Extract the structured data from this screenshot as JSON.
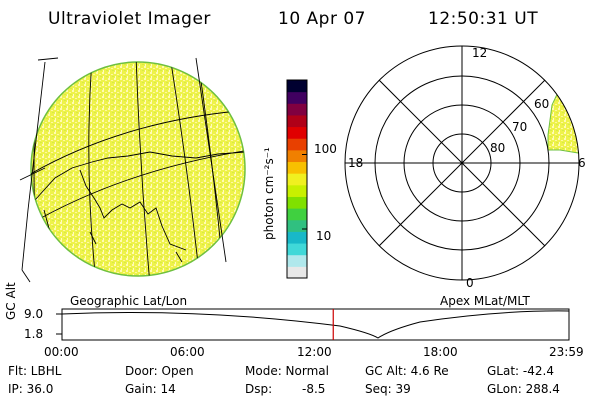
{
  "header": {
    "instrument": "Ultraviolet Imager",
    "date": "10 Apr 07",
    "time": "12:50:31 UT"
  },
  "colorbar": {
    "unit_label": "photon cm⁻²s⁻¹",
    "ticks": [
      {
        "label": "100",
        "value": 100
      },
      {
        "label": "10",
        "value": 10
      }
    ],
    "colors": [
      "#e8e8e8",
      "#b0e8ec",
      "#40d8d8",
      "#18b8c8",
      "#30c080",
      "#40d040",
      "#80e000",
      "#c8f000",
      "#f0f020",
      "#f8c000",
      "#f08000",
      "#e84000",
      "#e00000",
      "#b00018",
      "#800040",
      "#400060",
      "#000030"
    ]
  },
  "geo_panel": {
    "label": "Geographic Lat/Lon"
  },
  "polar_panel": {
    "label": "Apex MLat/MLT",
    "mlt_labels": {
      "top": "12",
      "left": "18",
      "right": "6",
      "bottom": "0"
    },
    "lat_labels": [
      "60",
      "70",
      "80"
    ]
  },
  "timeline": {
    "y_label": "GC Alt",
    "y_ticks": [
      "9.0",
      "1.8"
    ],
    "x_ticks": [
      "00:00",
      "06:00",
      "12:00",
      "18:00",
      "23:59"
    ],
    "current_time_hours": 12.84,
    "marker_color": "#cc0000"
  },
  "info": {
    "flt": "Flt: LBHL",
    "ip": "IP: 36.0",
    "door": "Door: Open",
    "gain": "Gain: 14",
    "mode": "Mode: Normal",
    "dsp": "Dsp:",
    "dsp_val": "-8.5",
    "gcalt": "GC Alt: 4.6 Re",
    "seq": "Seq: 39",
    "glat": "GLat: -42.4",
    "glon": "GLon: 288.4"
  }
}
